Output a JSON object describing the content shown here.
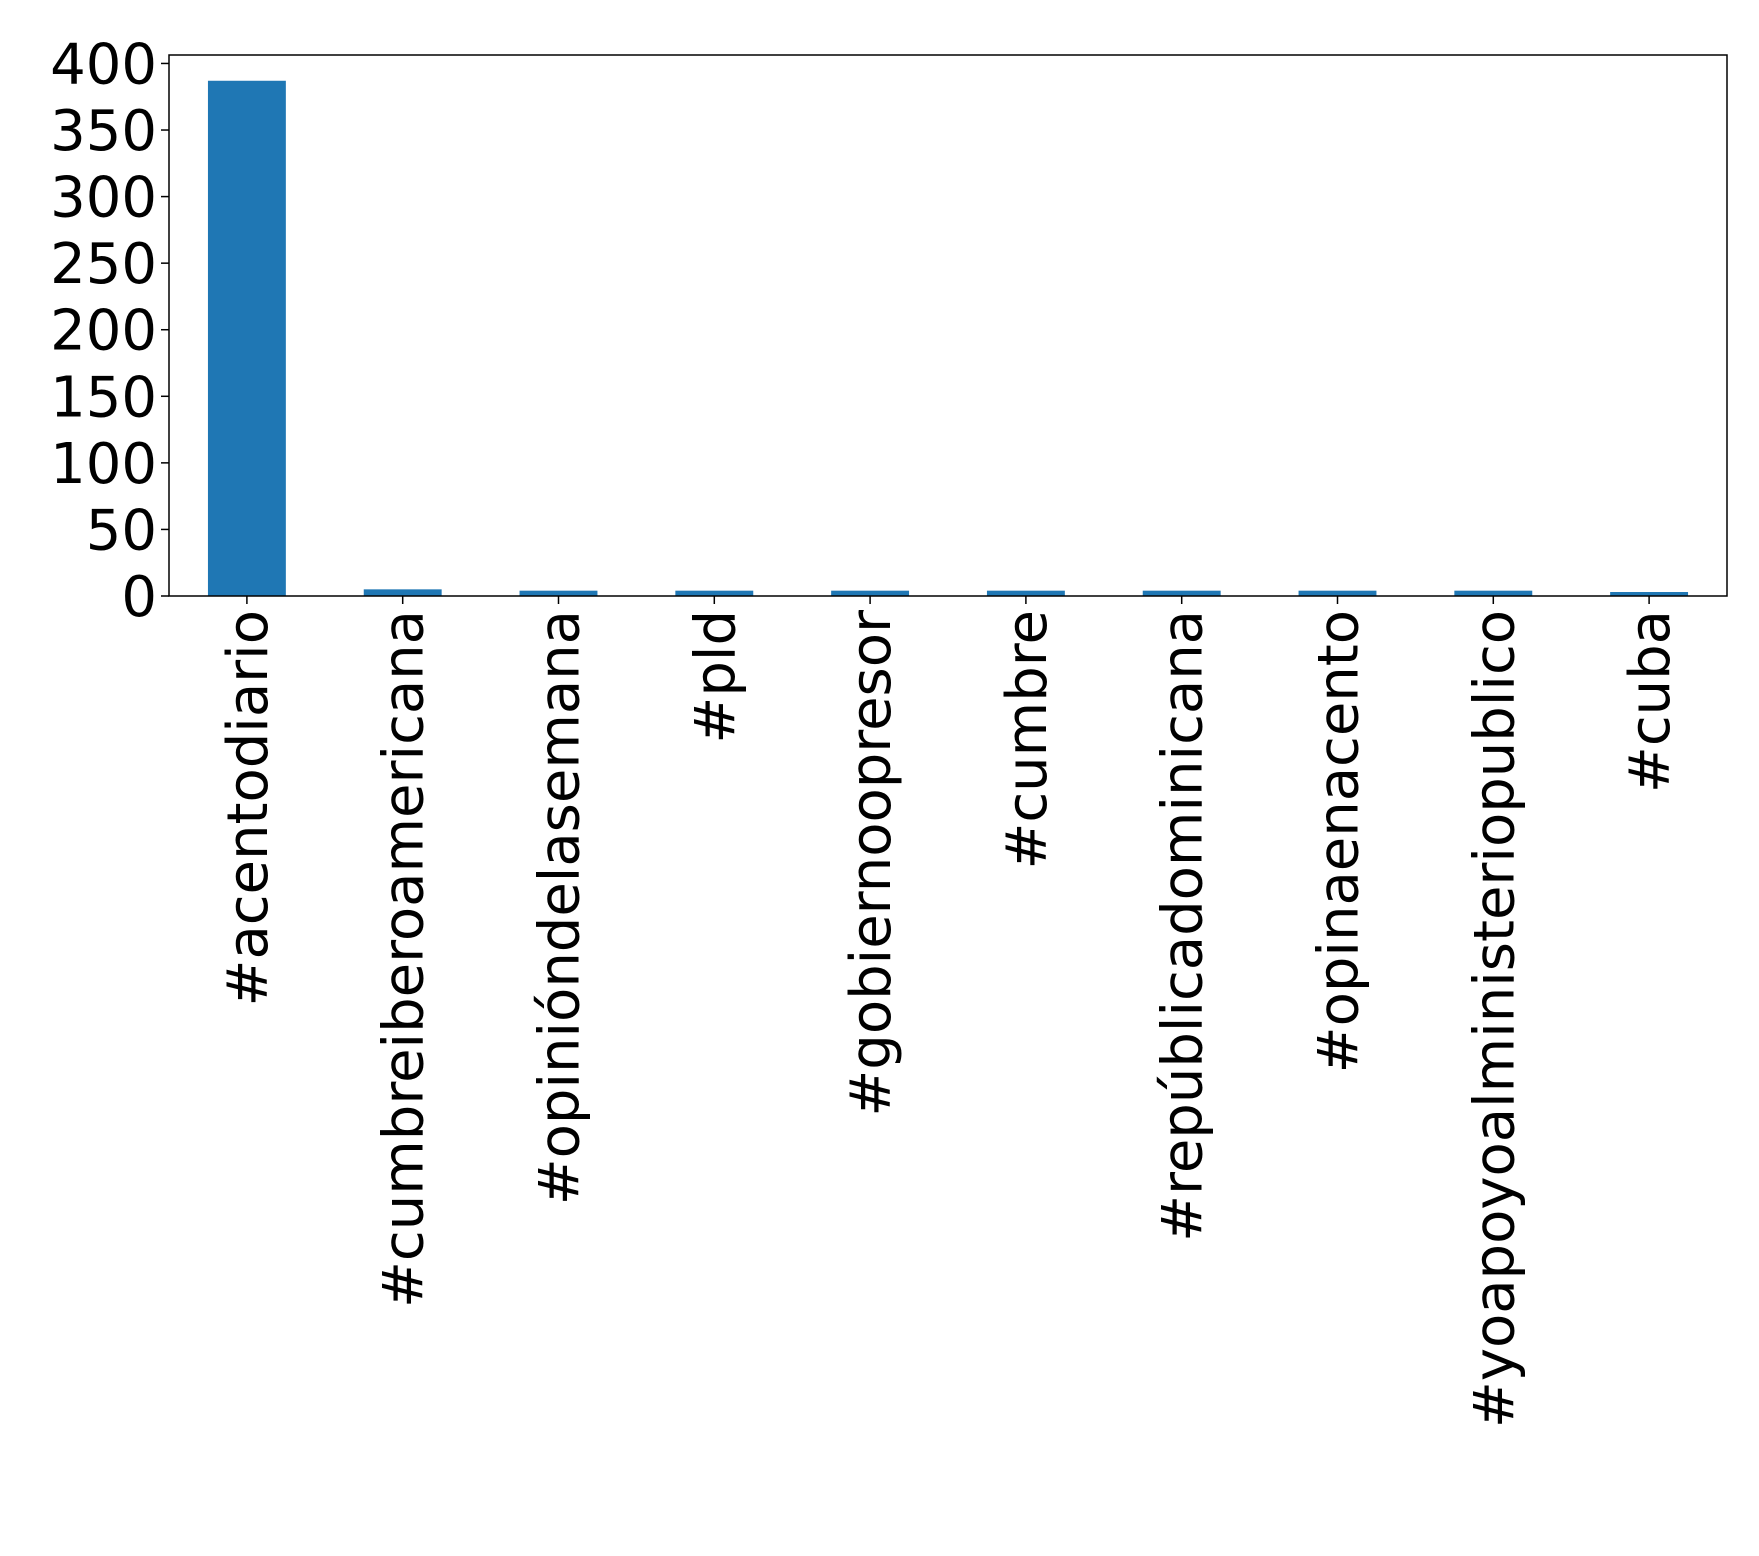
{
  "chart_data": {
    "type": "bar",
    "categories": [
      "#acentodiario",
      "#cumbreiberoamericana",
      "#opinióndelasemana",
      "#pld",
      "#gobiernoopresor",
      "#cumbre",
      "#repúblicadominicana",
      "#opinaenacento",
      "#yoapoyoalministeriopublico",
      "#cuba"
    ],
    "values": [
      387,
      5,
      4,
      4,
      4,
      4,
      4,
      4,
      4,
      3
    ],
    "color": "#1f77b4",
    "ylim": [
      0,
      406.35
    ],
    "yticks": [
      0,
      50,
      100,
      150,
      200,
      250,
      300,
      350,
      400
    ],
    "grid": false
  }
}
